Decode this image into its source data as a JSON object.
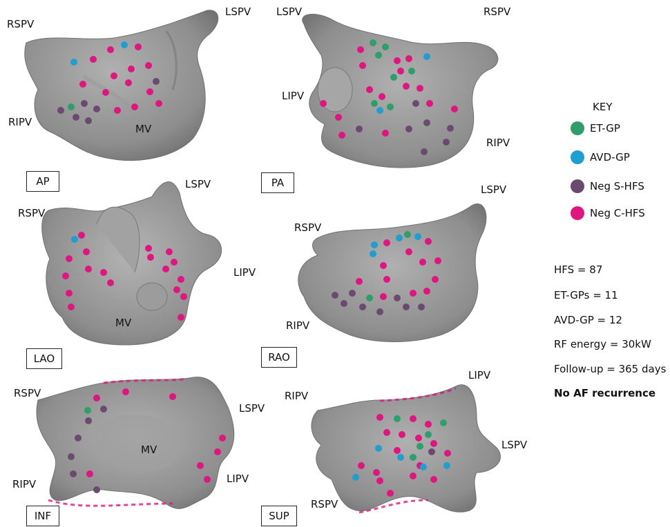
{
  "views": [
    {
      "name": "AP",
      "labels": [
        "RSPV",
        "LSPV",
        "RIPV",
        "MV"
      ]
    },
    {
      "name": "PA",
      "labels": [
        "LSPV",
        "RSPV",
        "LIPV",
        "RIPV"
      ]
    },
    {
      "name": "LAO",
      "labels": [
        "LSPV",
        "RSPV",
        "LIPV",
        "MV"
      ]
    },
    {
      "name": "RAO",
      "labels": [
        "LSPV",
        "RSPV",
        "RIPV"
      ]
    },
    {
      "name": "INF",
      "labels": [
        "RSPV",
        "LSPV",
        "MV",
        "RIPV",
        "LIPV"
      ]
    },
    {
      "name": "SUP",
      "labels": [
        "LIPV",
        "RIPV",
        "LSPV",
        "RSPV"
      ]
    }
  ],
  "key": {
    "title": "KEY",
    "items": [
      {
        "label": "ET-GP",
        "color": "#2e9e6a"
      },
      {
        "label": "AVD-GP",
        "color": "#1f9fcf"
      },
      {
        "label": "Neg S-HFS",
        "color": "#6b4a70"
      },
      {
        "label": "Neg C-HFS",
        "color": "#e0157f"
      }
    ]
  },
  "stats": [
    "HFS = 87",
    "ET-GPs = 11",
    "AVD-GP = 12",
    "RF energy = 30kW",
    "Follow-up = 365 days",
    "No AF recurrence"
  ],
  "colors": {
    "surface": "#8c8c8c",
    "surface_dark": "#6e6e6e",
    "surface_light": "#a8a8a8"
  }
}
